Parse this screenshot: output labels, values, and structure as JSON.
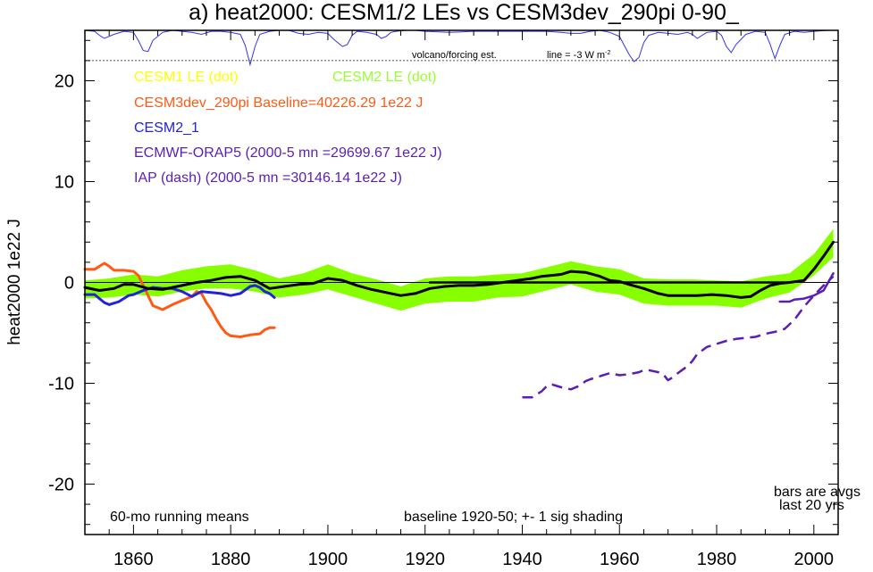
{
  "chart_data": {
    "type": "line",
    "title": "a) heat2000: CESM1/2 LEs vs CESM3dev_290pi 0-90_",
    "ylabel": "heat2000 1e22 J",
    "xlim": [
      1850,
      2005
    ],
    "ylim": [
      -25,
      25
    ],
    "xticks": [
      1860,
      1880,
      1900,
      1920,
      1940,
      1960,
      1980,
      2000
    ],
    "yticks": [
      20,
      10,
      0,
      -10,
      -20
    ],
    "zero_line": 0,
    "legend": [
      {
        "label": "CESM1 LE (dot)",
        "color": "#ffff00"
      },
      {
        "label": "CESM2 LE (dot)",
        "color": "#99ff33"
      },
      {
        "label": "CESM3dev_290pi Baseline=40226.29 1e22 J",
        "color": "#ff5a14"
      },
      {
        "label": "CESM2_1",
        "color": "#2222dd"
      },
      {
        "label": "ECMWF-ORAP5 (2000-5 mn =29699.67 1e22 J)",
        "color": "#5a1eb4"
      },
      {
        "label": "IAP (dash) (2000-5 mn =30146.14 1e22 J)",
        "color": "#5a1eb4"
      }
    ],
    "annotations": {
      "volcano": "volcano/forcing est.",
      "line_note_main": "line = -3 W m",
      "line_note_sup": "-2",
      "running": "60-mo running means",
      "baseline": "baseline 1920-50; +- 1 sig shading",
      "bars1": "bars are avgs",
      "bars2": "last 20 yrs"
    },
    "volcano_ref_y": 22,
    "volcano_trace": {
      "x": [
        1850,
        1852,
        1853,
        1854,
        1856,
        1858,
        1860,
        1861,
        1862,
        1863,
        1864,
        1866,
        1868,
        1870,
        1872,
        1874,
        1876,
        1878,
        1880,
        1882,
        1883,
        1884,
        1885,
        1886,
        1888,
        1890,
        1892,
        1894,
        1896,
        1898,
        1900,
        1901,
        1902,
        1903,
        1904,
        1905,
        1906,
        1908,
        1910,
        1911,
        1912,
        1913,
        1914,
        1916,
        1918,
        1920,
        1925,
        1930,
        1935,
        1940,
        1945,
        1948,
        1950,
        1952,
        1954,
        1956,
        1958,
        1960,
        1961,
        1962,
        1963,
        1964,
        1965,
        1966,
        1968,
        1970,
        1972,
        1974,
        1975,
        1976,
        1977,
        1978,
        1980,
        1981,
        1982,
        1983,
        1984,
        1986,
        1988,
        1990,
        1991,
        1992,
        1993,
        1994,
        1996,
        1998,
        2000,
        2003
      ],
      "y": [
        25,
        24.9,
        24.5,
        24.2,
        24.6,
        24.9,
        24.8,
        24,
        23,
        22.9,
        24,
        24.8,
        25,
        24.9,
        24.8,
        24.6,
        24.9,
        24.9,
        24.8,
        24.6,
        23.5,
        21.6,
        23.4,
        24.6,
        24.9,
        25,
        25,
        24.7,
        24.6,
        24.8,
        24.7,
        24.2,
        23.8,
        23.4,
        23.6,
        24.5,
        24.9,
        24.8,
        24.6,
        24.2,
        24.4,
        24.8,
        24.9,
        25,
        25,
        24.9,
        24.8,
        24.9,
        24.9,
        24.9,
        24.9,
        24.8,
        24.7,
        24.7,
        24.9,
        25,
        24.8,
        24.4,
        23.5,
        22.6,
        21.9,
        22.3,
        23.8,
        24.5,
        24.8,
        24.7,
        24.6,
        24.8,
        24.6,
        24.2,
        24.5,
        24.8,
        24.9,
        24.5,
        23.4,
        22.8,
        23.6,
        24.6,
        24.9,
        24.8,
        23.6,
        22.2,
        23.5,
        24.6,
        24.9,
        24.8,
        24.9,
        25
      ]
    },
    "shading": {
      "color": "#88ff00",
      "x": [
        1850,
        1855,
        1860,
        1865,
        1870,
        1875,
        1880,
        1885,
        1890,
        1895,
        1900,
        1905,
        1910,
        1915,
        1920,
        1925,
        1930,
        1935,
        1940,
        1945,
        1950,
        1955,
        1960,
        1965,
        1970,
        1975,
        1980,
        1985,
        1990,
        1995,
        2000,
        2004
      ],
      "upper": [
        0.2,
        0.4,
        0.8,
        0.6,
        1.2,
        1.6,
        1.8,
        1.2,
        0.4,
        0.9,
        1.8,
        0.9,
        0.3,
        -0.4,
        0.4,
        0.6,
        0.6,
        0.8,
        0.9,
        1.5,
        2.1,
        1.6,
        1.3,
        0.4,
        0.3,
        0.3,
        0.2,
        0.1,
        0.6,
        0.9,
        2.8,
        5.3
      ],
      "lower": [
        -1.6,
        -1.5,
        -1.2,
        -1.4,
        -0.9,
        -0.6,
        -0.6,
        -0.9,
        -1.5,
        -1.2,
        -0.7,
        -1.4,
        -2.1,
        -2.8,
        -2.1,
        -1.9,
        -1.9,
        -1.5,
        -1.4,
        -0.8,
        -0.2,
        -0.9,
        -1.2,
        -2.1,
        -2.3,
        -2.3,
        -2.3,
        -2.5,
        -1.6,
        -1.0,
        0.7,
        2.5
      ]
    },
    "series": [
      {
        "name": "CESM3dev_290pi",
        "color": "#ff5a14",
        "dash": "solid",
        "width": 3,
        "x": [
          1850,
          1852,
          1853,
          1854,
          1855,
          1856,
          1858,
          1860,
          1861,
          1862,
          1863,
          1864,
          1866,
          1868,
          1870,
          1872,
          1873,
          1874,
          1875,
          1876,
          1877,
          1878,
          1879,
          1880,
          1882,
          1884,
          1886,
          1887,
          1888,
          1889
        ],
        "y": [
          1.3,
          1.3,
          1.6,
          1.9,
          1.6,
          1.2,
          1.2,
          1.1,
          0.7,
          -0.3,
          -1.3,
          -2.3,
          -2.7,
          -2.2,
          -1.8,
          -1.4,
          -0.9,
          -1.1,
          -2.0,
          -2.7,
          -3.6,
          -4.4,
          -5.0,
          -5.3,
          -5.4,
          -5.2,
          -5.1,
          -4.7,
          -4.5,
          -4.5
        ]
      },
      {
        "name": "CESM2_1",
        "color": "#2222dd",
        "dash": "solid",
        "width": 3,
        "x": [
          1850,
          1852,
          1853,
          1854,
          1855,
          1857,
          1859,
          1860,
          1862,
          1864,
          1866,
          1868,
          1870,
          1872,
          1874,
          1876,
          1878,
          1880,
          1882,
          1884,
          1885,
          1886,
          1887,
          1888,
          1889
        ],
        "y": [
          -1.2,
          -1.2,
          -1.6,
          -2.0,
          -2.2,
          -1.9,
          -1.3,
          -1.2,
          -0.8,
          -0.5,
          -0.6,
          -0.6,
          -0.9,
          -1.4,
          -0.9,
          -1.0,
          -1.1,
          -1.3,
          -1.1,
          -0.4,
          -0.3,
          -0.5,
          -0.9,
          -1.1,
          -1.5
        ]
      },
      {
        "name": "CESM2 LE mean",
        "color": "#000000",
        "dash": "solid",
        "width": 3,
        "x": [
          1850,
          1853,
          1856,
          1858,
          1860,
          1863,
          1866,
          1870,
          1873,
          1876,
          1879,
          1882,
          1885,
          1888,
          1891,
          1894,
          1897,
          1900,
          1903,
          1906,
          1909,
          1912,
          1915,
          1918,
          1921,
          1924,
          1927,
          1930,
          1933,
          1936,
          1939,
          1942,
          1944,
          1946,
          1948,
          1950,
          1953,
          1956,
          1958,
          1960,
          1962,
          1965,
          1968,
          1970,
          1973,
          1976,
          1979,
          1982,
          1985,
          1987,
          1989,
          1991,
          1993,
          1995,
          1998,
          2000,
          2002,
          2004
        ],
        "y": [
          -0.5,
          -0.8,
          -0.6,
          -0.2,
          -0.2,
          -0.6,
          -0.7,
          -0.3,
          0.0,
          0.2,
          0.5,
          0.6,
          0.2,
          -0.6,
          -0.4,
          -0.2,
          -0.1,
          0.4,
          0.2,
          -0.3,
          -0.7,
          -1.0,
          -1.3,
          -1.1,
          -0.6,
          -0.4,
          -0.3,
          -0.3,
          -0.2,
          0.0,
          0.2,
          0.4,
          0.6,
          0.7,
          0.8,
          1.1,
          1.0,
          0.6,
          0.2,
          0.1,
          -0.2,
          -0.6,
          -1.1,
          -1.3,
          -1.3,
          -1.3,
          -1.2,
          -1.3,
          -1.5,
          -1.4,
          -0.8,
          -0.3,
          -0.1,
          0.0,
          0.2,
          1.3,
          2.6,
          4.0
        ]
      },
      {
        "name": "baseline",
        "color": "#000000",
        "dash": "solid",
        "width": 2.5,
        "x": [
          1921,
          1995
        ],
        "y": [
          0,
          0
        ]
      },
      {
        "name": "ECMWF-ORAP5",
        "color": "#5a1eb4",
        "dash": "solid",
        "width": 2.5,
        "x": [
          1993,
          1995,
          1996,
          1998,
          2000,
          2002,
          2004
        ],
        "y": [
          -1.9,
          -1.9,
          -1.7,
          -1.6,
          -1.3,
          -0.8,
          0.9
        ]
      },
      {
        "name": "IAP",
        "color": "#5a1eb4",
        "dash": "dash",
        "width": 2.5,
        "x": [
          1940,
          1942,
          1944,
          1945,
          1946,
          1948,
          1950,
          1952,
          1953,
          1954,
          1956,
          1958,
          1959,
          1960,
          1962,
          1964,
          1965,
          1966,
          1968,
          1969,
          1970,
          1971,
          1972,
          1974,
          1975,
          1976,
          1978,
          1980,
          1982,
          1984,
          1986,
          1988,
          1990,
          1992,
          1994,
          1996,
          1998,
          2000,
          2002,
          2004
        ],
        "y": [
          -11.4,
          -11.4,
          -10.8,
          -10.3,
          -10.1,
          -10.4,
          -10.6,
          -10.2,
          -9.8,
          -9.6,
          -9.3,
          -9.0,
          -9.1,
          -9.2,
          -9.1,
          -8.9,
          -8.7,
          -8.7,
          -8.9,
          -9.1,
          -9.7,
          -9.4,
          -9.0,
          -8.3,
          -7.8,
          -7.1,
          -6.4,
          -6.1,
          -5.8,
          -5.6,
          -5.5,
          -5.4,
          -5.1,
          -4.9,
          -4.6,
          -3.7,
          -2.4,
          -1.3,
          -0.3,
          0.6
        ]
      }
    ]
  }
}
